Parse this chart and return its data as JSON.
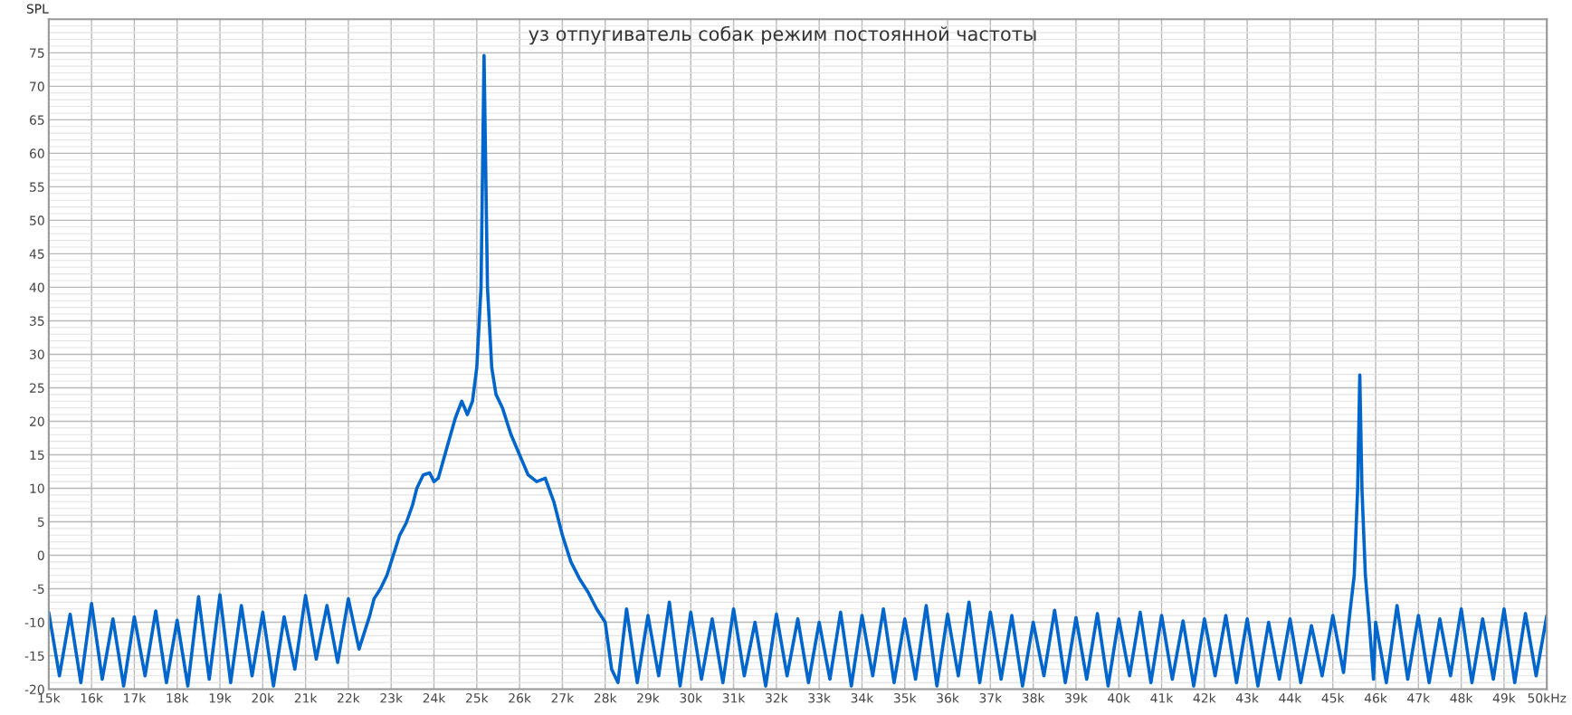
{
  "chart_data": {
    "type": "line",
    "title": "уз отпугиватель собак режим постоянной частоты",
    "ylabel": "SPL",
    "x": [
      15.0,
      15.25,
      15.5,
      15.75,
      16.0,
      16.25,
      16.5,
      16.75,
      17.0,
      17.25,
      17.5,
      17.75,
      18.0,
      18.25,
      18.5,
      18.75,
      19.0,
      19.25,
      19.5,
      19.75,
      20.0,
      20.25,
      20.5,
      20.75,
      21.0,
      21.25,
      21.5,
      21.75,
      22.0,
      22.25,
      22.5,
      22.6,
      22.75,
      22.9,
      23.05,
      23.2,
      23.35,
      23.5,
      23.6,
      23.75,
      23.9,
      24.0,
      24.1,
      24.3,
      24.5,
      24.65,
      24.78,
      24.9,
      25.0,
      25.1,
      25.17,
      25.25,
      25.35,
      25.45,
      25.6,
      25.8,
      26.0,
      26.2,
      26.4,
      26.6,
      26.8,
      27.0,
      27.2,
      27.4,
      27.6,
      27.8,
      28.0,
      28.15,
      28.3,
      28.5,
      28.75,
      29.0,
      29.25,
      29.5,
      29.75,
      30.0,
      30.25,
      30.5,
      30.75,
      31.0,
      31.25,
      31.5,
      31.75,
      32.0,
      32.25,
      32.5,
      32.75,
      33.0,
      33.25,
      33.5,
      33.75,
      34.0,
      34.25,
      34.5,
      34.75,
      35.0,
      35.25,
      35.5,
      35.75,
      36.0,
      36.25,
      36.5,
      36.75,
      37.0,
      37.25,
      37.5,
      37.75,
      38.0,
      38.25,
      38.5,
      38.75,
      39.0,
      39.25,
      39.5,
      39.75,
      40.0,
      40.25,
      40.5,
      40.75,
      41.0,
      41.25,
      41.5,
      41.75,
      42.0,
      42.25,
      42.5,
      42.75,
      43.0,
      43.25,
      43.5,
      43.75,
      44.0,
      44.25,
      44.5,
      44.75,
      45.0,
      45.25,
      45.4,
      45.5,
      45.58,
      45.63,
      45.68,
      45.76,
      45.85,
      45.95,
      46.0,
      46.25,
      46.5,
      46.75,
      47.0,
      47.25,
      47.5,
      47.75,
      48.0,
      48.25,
      48.5,
      48.75,
      49.0,
      49.25,
      49.5,
      49.75,
      50.0
    ],
    "series": [
      {
        "color": "#0066cc",
        "values": [
          -8.5,
          -18,
          -8.8,
          -19,
          -7.2,
          -18.5,
          -9.5,
          -19.5,
          -9.2,
          -18,
          -8.3,
          -19,
          -9.7,
          -19.5,
          -6.2,
          -18.5,
          -5.9,
          -19,
          -7.5,
          -18,
          -8.5,
          -19.5,
          -9.2,
          -17,
          -6,
          -15.5,
          -7.5,
          -16,
          -6.5,
          -14,
          -9,
          -6.5,
          -5,
          -3,
          0,
          3,
          4.8,
          7.5,
          10,
          12,
          12.3,
          11,
          11.5,
          16,
          20.5,
          23,
          21,
          23,
          28,
          40,
          74.6,
          40,
          28,
          24,
          22,
          18,
          15,
          12,
          11,
          11.5,
          8,
          3,
          -1,
          -3.5,
          -5.5,
          -8,
          -10,
          -17,
          -19,
          -8,
          -19,
          -9,
          -18,
          -7,
          -19.5,
          -8.5,
          -18.5,
          -9.5,
          -19,
          -8,
          -18,
          -10,
          -19.5,
          -8.8,
          -18,
          -9.5,
          -19,
          -10,
          -18.5,
          -8.5,
          -19.5,
          -9,
          -18,
          -8,
          -19,
          -9.5,
          -18.5,
          -7.5,
          -19.5,
          -8.8,
          -18,
          -7,
          -19,
          -8.5,
          -18.5,
          -9,
          -19.5,
          -10,
          -18,
          -8.2,
          -19,
          -9.3,
          -18.5,
          -8.7,
          -19.5,
          -9.5,
          -18,
          -8.5,
          -19,
          -9,
          -18.5,
          -9.8,
          -19.5,
          -9.5,
          -18,
          -9,
          -19,
          -9.5,
          -19.5,
          -10,
          -18.5,
          -9.5,
          -19,
          -10.5,
          -18,
          -9,
          -17.5,
          -8.5,
          -3,
          10,
          26.9,
          10,
          -3,
          -10,
          -18.5,
          -10,
          -19,
          -7.5,
          -18.5,
          -9,
          -19,
          -9.5,
          -18,
          -8,
          -19,
          -9.5,
          -18.5,
          -8,
          -19,
          -8.7,
          -18,
          -9
        ]
      }
    ],
    "xlim": [
      15,
      50
    ],
    "ylim": [
      -20,
      80
    ],
    "xticks": [
      {
        "value": 15,
        "label": "15k"
      },
      {
        "value": 16,
        "label": "16k"
      },
      {
        "value": 17,
        "label": "17k"
      },
      {
        "value": 18,
        "label": "18k"
      },
      {
        "value": 19,
        "label": "19k"
      },
      {
        "value": 20,
        "label": "20k"
      },
      {
        "value": 21,
        "label": "21k"
      },
      {
        "value": 22,
        "label": "22k"
      },
      {
        "value": 23,
        "label": "23k"
      },
      {
        "value": 24,
        "label": "24k"
      },
      {
        "value": 25,
        "label": "25k"
      },
      {
        "value": 26,
        "label": "26k"
      },
      {
        "value": 27,
        "label": "27k"
      },
      {
        "value": 28,
        "label": "28k"
      },
      {
        "value": 29,
        "label": "29k"
      },
      {
        "value": 30,
        "label": "30k"
      },
      {
        "value": 31,
        "label": "31k"
      },
      {
        "value": 32,
        "label": "32k"
      },
      {
        "value": 33,
        "label": "33k"
      },
      {
        "value": 34,
        "label": "34k"
      },
      {
        "value": 35,
        "label": "35k"
      },
      {
        "value": 36,
        "label": "36k"
      },
      {
        "value": 37,
        "label": "37k"
      },
      {
        "value": 38,
        "label": "38k"
      },
      {
        "value": 39,
        "label": "39k"
      },
      {
        "value": 40,
        "label": "40k"
      },
      {
        "value": 41,
        "label": "41k"
      },
      {
        "value": 42,
        "label": "42k"
      },
      {
        "value": 43,
        "label": "43k"
      },
      {
        "value": 44,
        "label": "44k"
      },
      {
        "value": 45,
        "label": "45k"
      },
      {
        "value": 46,
        "label": "46k"
      },
      {
        "value": 47,
        "label": "47k"
      },
      {
        "value": 48,
        "label": "48k"
      },
      {
        "value": 49,
        "label": "49k"
      },
      {
        "value": 50,
        "label": "50kHz"
      }
    ],
    "yticks": [
      -20,
      -15,
      -10,
      -5,
      0,
      5,
      10,
      15,
      20,
      25,
      30,
      35,
      40,
      45,
      50,
      55,
      60,
      65,
      70,
      75
    ],
    "grid": true,
    "marker": "none",
    "line_style": "solid"
  }
}
